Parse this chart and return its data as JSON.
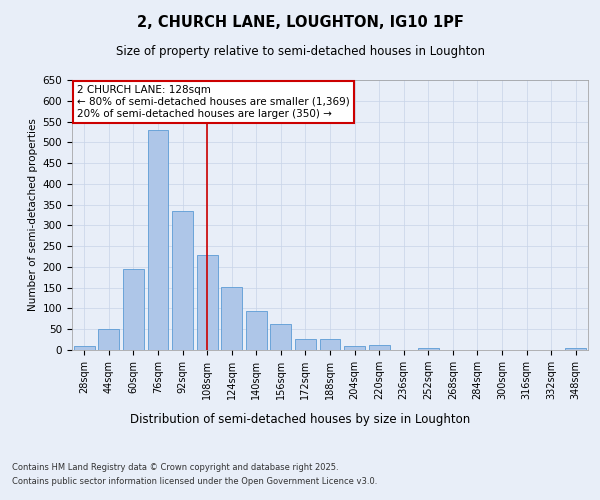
{
  "title1": "2, CHURCH LANE, LOUGHTON, IG10 1PF",
  "title2": "Size of property relative to semi-detached houses in Loughton",
  "xlabel": "Distribution of semi-detached houses by size in Loughton",
  "ylabel": "Number of semi-detached properties",
  "categories": [
    "28sqm",
    "44sqm",
    "60sqm",
    "76sqm",
    "92sqm",
    "108sqm",
    "124sqm",
    "140sqm",
    "156sqm",
    "172sqm",
    "188sqm",
    "204sqm",
    "220sqm",
    "236sqm",
    "252sqm",
    "268sqm",
    "284sqm",
    "300sqm",
    "316sqm",
    "332sqm",
    "348sqm"
  ],
  "values": [
    10,
    50,
    195,
    530,
    335,
    228,
    152,
    95,
    62,
    27,
    27,
    10,
    13,
    0,
    5,
    0,
    0,
    1,
    0,
    0,
    4
  ],
  "bar_color": "#aec6e8",
  "bar_edge_color": "#5b9bd5",
  "property_label": "2 CHURCH LANE: 128sqm",
  "annotation_line1": "← 80% of semi-detached houses are smaller (1,369)",
  "annotation_line2": "20% of semi-detached houses are larger (350) →",
  "vline_color": "#cc0000",
  "vline_position": 5.0,
  "annotation_box_color": "#ffffff",
  "annotation_box_edge": "#cc0000",
  "grid_color": "#c8d4e8",
  "background_color": "#e8eef8",
  "footer1": "Contains HM Land Registry data © Crown copyright and database right 2025.",
  "footer2": "Contains public sector information licensed under the Open Government Licence v3.0.",
  "ylim": [
    0,
    650
  ],
  "yticks": [
    0,
    50,
    100,
    150,
    200,
    250,
    300,
    350,
    400,
    450,
    500,
    550,
    600,
    650
  ]
}
